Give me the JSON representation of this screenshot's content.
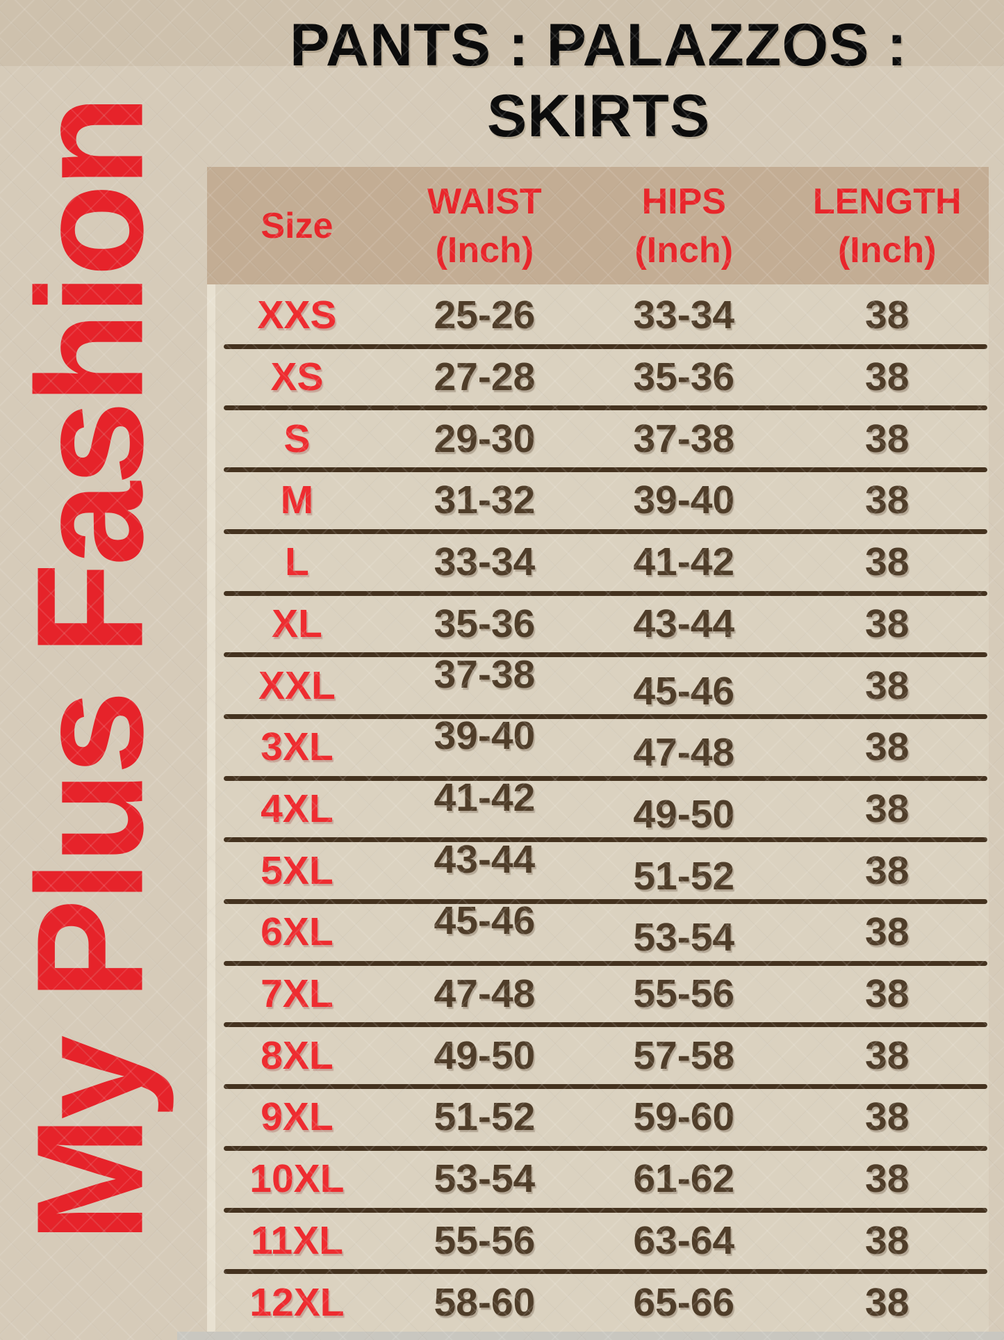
{
  "brand": {
    "name": "My Plus Fashion"
  },
  "title": {
    "line1": "PANTS : PALAZZOS :",
    "line2": "SKIRTS"
  },
  "table": {
    "header": {
      "size": "Size",
      "waist_l1": "WAIST",
      "waist_l2": "(Inch)",
      "hips_l1": "HIPS",
      "hips_l2": "(Inch)",
      "length_l1": "LENGTH",
      "length_l2": "(Inch)"
    }
  },
  "chart_data": {
    "type": "table",
    "title": "PANTS : PALAZZOS : SKIRTS",
    "columns": [
      "Size",
      "WAIST (Inch)",
      "HIPS (Inch)",
      "LENGTH (Inch)"
    ],
    "rows": [
      [
        "XXS",
        "25-26",
        "33-34",
        "38"
      ],
      [
        "XS",
        "27-28",
        "35-36",
        "38"
      ],
      [
        "S",
        "29-30",
        "37-38",
        "38"
      ],
      [
        "M",
        "31-32",
        "39-40",
        "38"
      ],
      [
        "L",
        "33-34",
        "41-42",
        "38"
      ],
      [
        "XL",
        "35-36",
        "43-44",
        "38"
      ],
      [
        "XXL",
        "37-38",
        "45-46",
        "38"
      ],
      [
        "3XL",
        "39-40",
        "47-48",
        "38"
      ],
      [
        "4XL",
        "41-42",
        "49-50",
        "38"
      ],
      [
        "5XL",
        "43-44",
        "51-52",
        "38"
      ],
      [
        "6XL",
        "45-46",
        "53-54",
        "38"
      ],
      [
        "7XL",
        "47-48",
        "55-56",
        "38"
      ],
      [
        "8XL",
        "49-50",
        "57-58",
        "38"
      ],
      [
        "9XL",
        "51-52",
        "59-60",
        "38"
      ],
      [
        "10XL",
        "53-54",
        "61-62",
        "38"
      ],
      [
        "11XL",
        "55-56",
        "63-64",
        "38"
      ],
      [
        "12XL",
        "58-60",
        "65-66",
        "38"
      ]
    ]
  },
  "colors": {
    "accent_red": "#e6232a",
    "size_label_red": "#ee2c30",
    "header_band": "#c3ad94",
    "value_brown": "#4f3d29",
    "separator_brown": "#44321f",
    "title_black": "#0c0c0c",
    "background_beige": "#d6cbb9",
    "bottom_strip_gray": "#c9c7c0"
  }
}
